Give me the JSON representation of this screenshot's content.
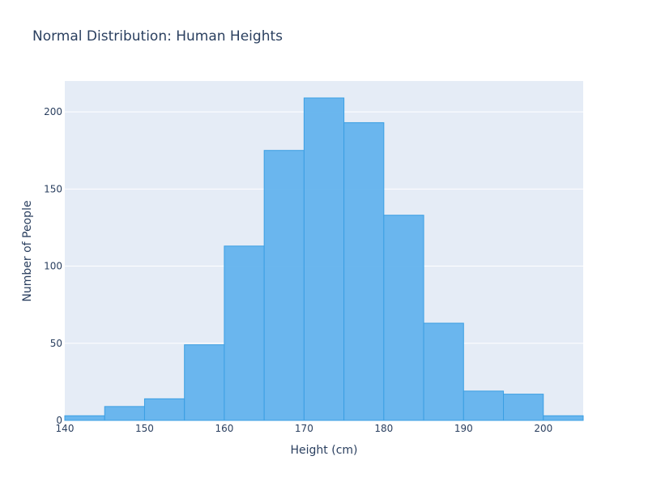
{
  "chart_data": {
    "type": "bar",
    "title": "Normal Distribution: Human Heights",
    "xlabel": "Height (cm)",
    "ylabel": "Number of People",
    "bin_edges": [
      140,
      145,
      150,
      155,
      160,
      165,
      170,
      175,
      180,
      185,
      190,
      195,
      200,
      205
    ],
    "values": [
      3,
      9,
      14,
      49,
      113,
      175,
      209,
      193,
      133,
      63,
      19,
      17,
      3
    ],
    "xlim": [
      140,
      205
    ],
    "ylim": [
      0,
      220
    ],
    "x_ticks": [
      140,
      150,
      160,
      170,
      180,
      190,
      200
    ],
    "y_ticks": [
      0,
      50,
      100,
      150,
      200
    ],
    "grid": true,
    "colors": {
      "bar_fill": "#63b3ed",
      "bar_stroke": "#3b9fe3",
      "plot_bg": "#e5ecf6",
      "grid": "#ffffff",
      "text": "#2a3f5f"
    }
  }
}
